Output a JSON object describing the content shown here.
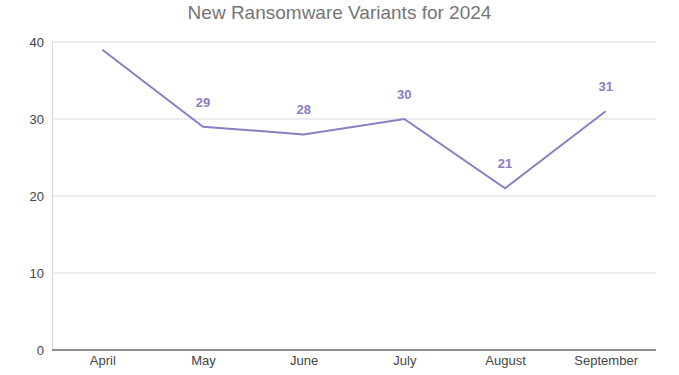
{
  "chart_data": {
    "type": "line",
    "title": "New Ransomware Variants for 2024",
    "categories": [
      "April",
      "May",
      "June",
      "July",
      "August",
      "September"
    ],
    "values": [
      39,
      29,
      28,
      30,
      21,
      31
    ],
    "value_labels": [
      null,
      "29",
      "28",
      "30",
      "21",
      "31"
    ],
    "color": "#8e7cc3",
    "ylim": [
      0,
      40
    ],
    "yticks": [
      0,
      10,
      20,
      30,
      40
    ],
    "grid": true,
    "data_labels": true,
    "marker": "none",
    "line_style": "solid"
  }
}
